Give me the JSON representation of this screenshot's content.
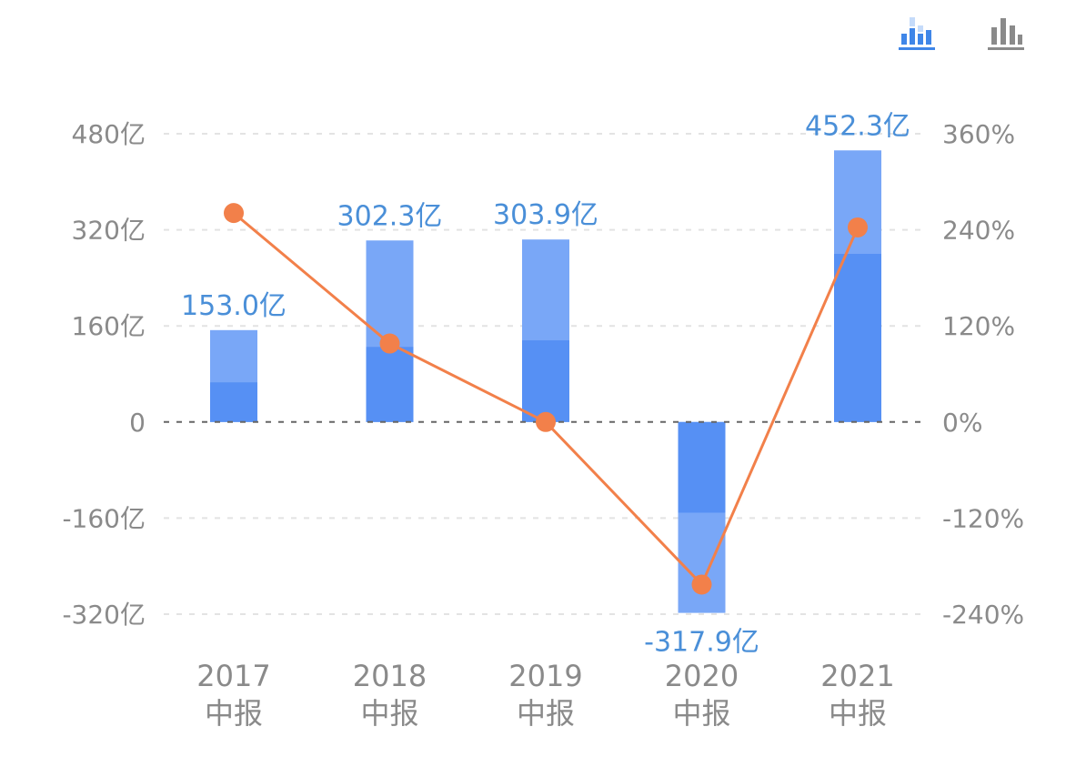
{
  "chart_data": {
    "type": "bar",
    "categories": [
      [
        "2017",
        "中报"
      ],
      [
        "2018",
        "中报"
      ],
      [
        "2019",
        "中报"
      ],
      [
        "2020",
        "中报"
      ],
      [
        "2021",
        "中报"
      ]
    ],
    "series": [
      {
        "type": "bar",
        "values": [
          153.0,
          302.3,
          303.9,
          -317.9,
          452.3
        ],
        "labels": [
          "153.0亿",
          "302.3亿",
          "303.9亿",
          "-317.9亿",
          "452.3亿"
        ],
        "inner_values": [
          66,
          125,
          136,
          -151,
          280
        ],
        "axis": "left"
      },
      {
        "type": "line",
        "values": [
          261,
          98,
          0,
          -203,
          243
        ],
        "axis": "right"
      }
    ],
    "left_axis": {
      "ylim": [
        -320,
        480
      ],
      "ticks": [
        480,
        320,
        160,
        0,
        -160,
        -320
      ],
      "tick_labels": [
        "480亿",
        "320亿",
        "160亿",
        "0",
        "-160亿",
        "-320亿"
      ]
    },
    "right_axis": {
      "ylim": [
        -240,
        360
      ],
      "ticks": [
        360,
        240,
        120,
        0,
        -120,
        -240
      ],
      "tick_labels": [
        "360%",
        "240%",
        "120%",
        "0%",
        "-120%",
        "-240%"
      ]
    },
    "grid": true,
    "legend": "none"
  },
  "colors": {
    "bar_outer": "#79a7f7",
    "bar_inner": "#5690f4",
    "line": "#f2804a",
    "label": "#4a8fd8",
    "toggle_active": "#3f86e8",
    "toggle_inactive": "#8a8a8a"
  },
  "toolbar": {
    "icons": [
      "bar-chart-icon",
      "bar-chart-icon"
    ]
  }
}
